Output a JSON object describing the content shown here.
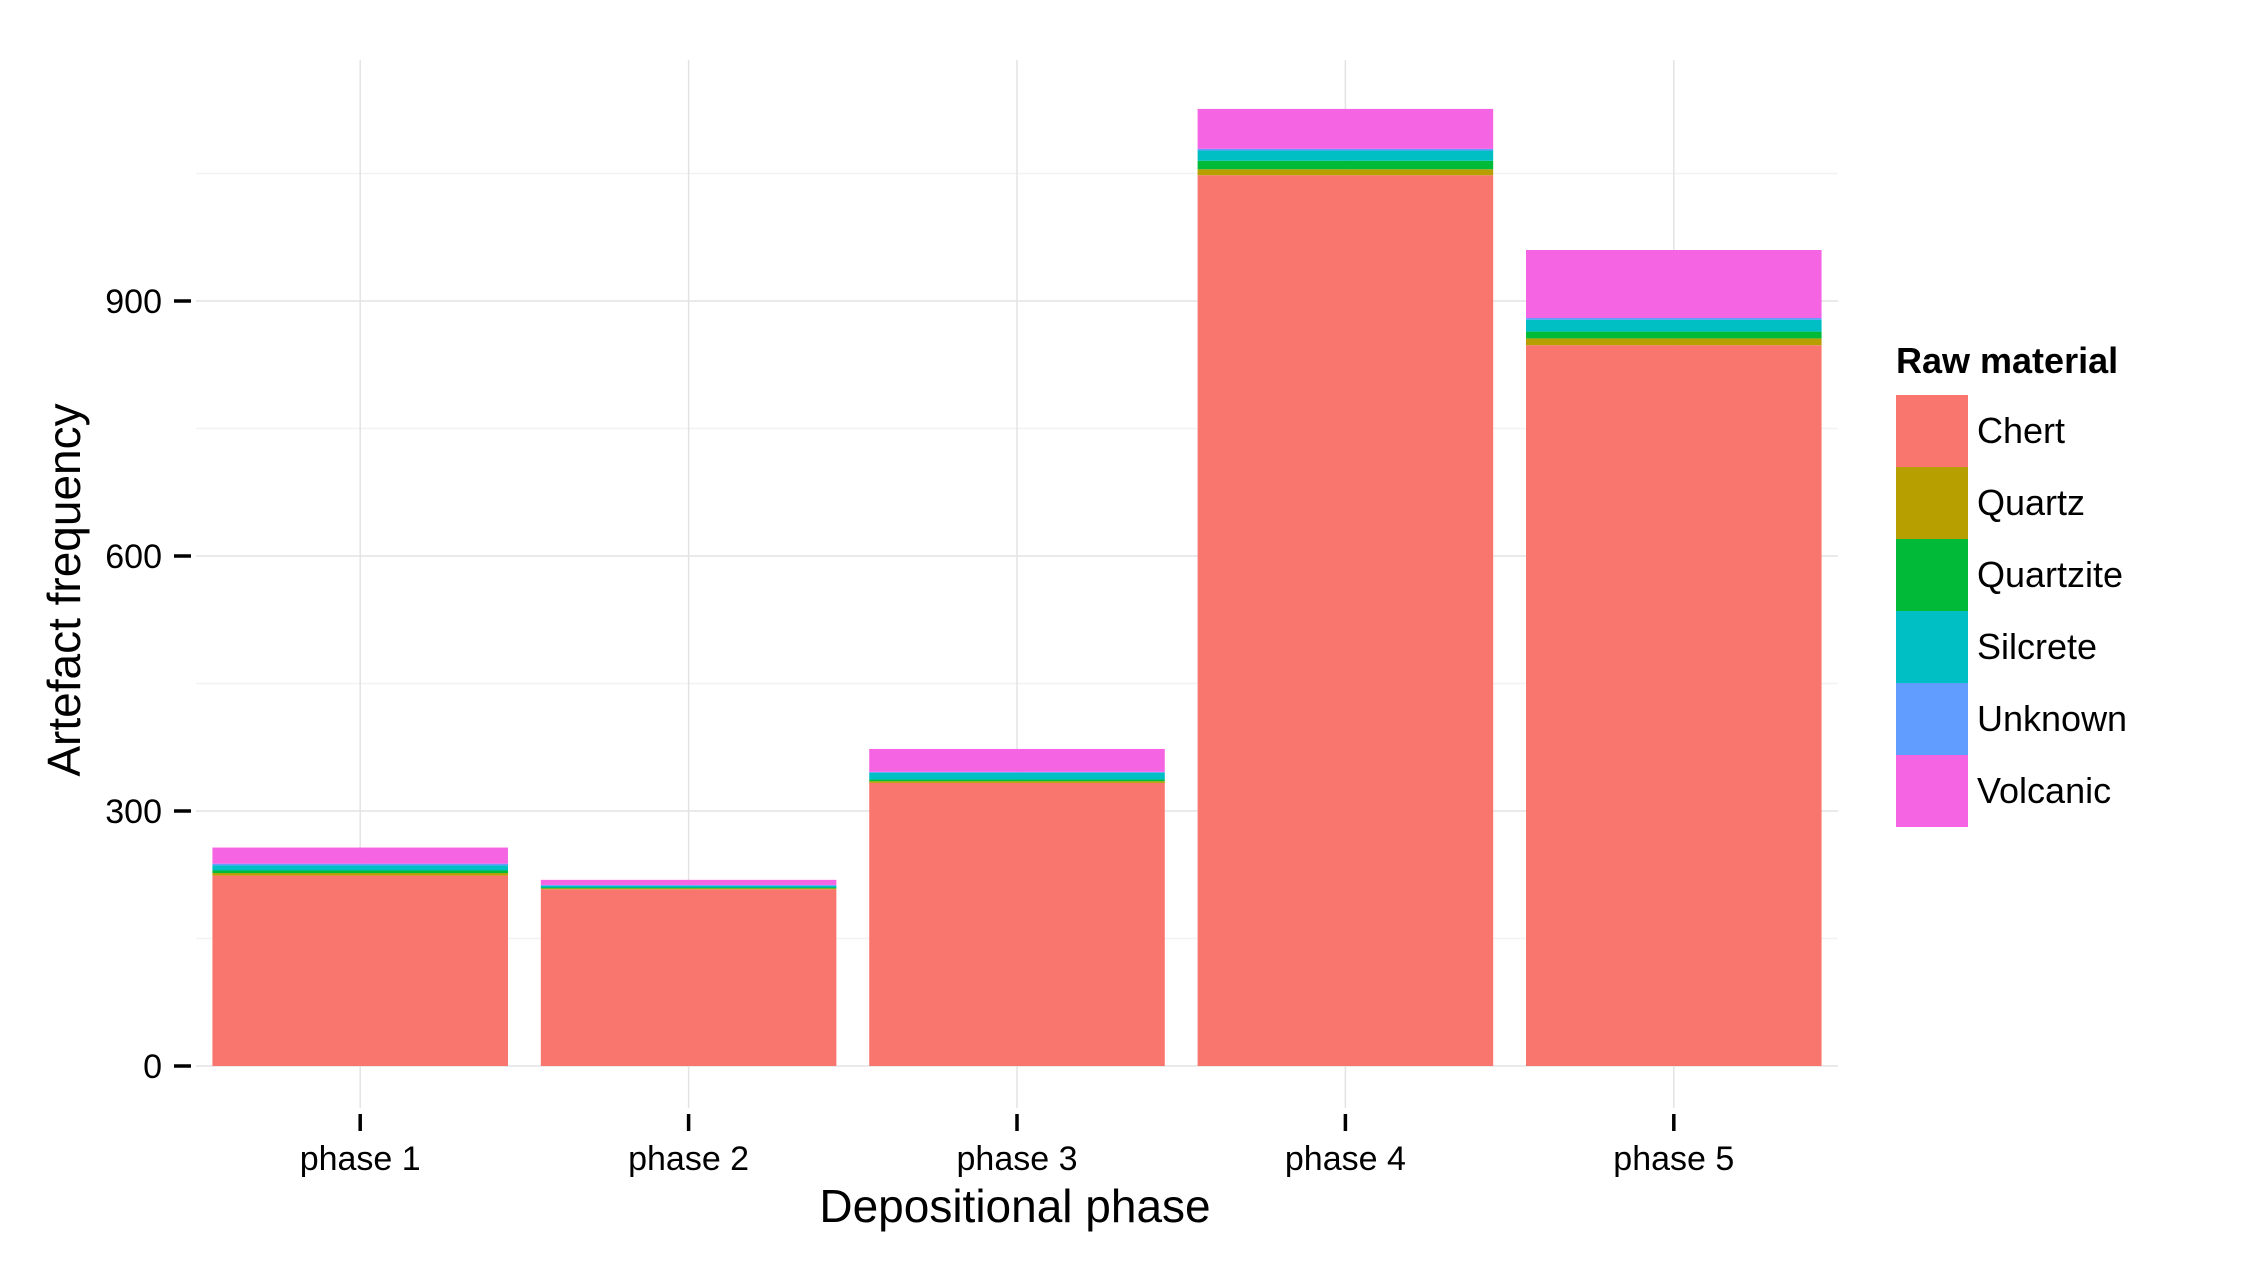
{
  "chart_data": {
    "type": "bar",
    "stacked": true,
    "title": "",
    "xlabel": "Depositional phase",
    "ylabel": "Artefact frequency",
    "categories": [
      "phase 1",
      "phase 2",
      "phase 3",
      "phase 4",
      "phase 5"
    ],
    "ylim": [
      0,
      1200
    ],
    "yticks": [
      0,
      300,
      600,
      900
    ],
    "grid": true,
    "legend": {
      "title": "Raw material",
      "position": "right"
    },
    "series": [
      {
        "name": "Chert",
        "color": "#F8766D",
        "values": [
          224,
          208,
          333,
          1048,
          848
        ]
      },
      {
        "name": "Quartz",
        "color": "#B79F00",
        "values": [
          3,
          1,
          2,
          7,
          8
        ]
      },
      {
        "name": "Quartzite",
        "color": "#00BA38",
        "values": [
          3,
          1,
          2,
          10,
          8
        ]
      },
      {
        "name": "Silcrete",
        "color": "#00BFC4",
        "values": [
          6,
          2,
          8,
          12,
          14
        ]
      },
      {
        "name": "Unknown",
        "color": "#619CFF",
        "values": [
          2,
          1,
          1,
          2,
          2
        ]
      },
      {
        "name": "Volcanic",
        "color": "#F564E3",
        "values": [
          19,
          6,
          27,
          47,
          80
        ]
      }
    ]
  }
}
